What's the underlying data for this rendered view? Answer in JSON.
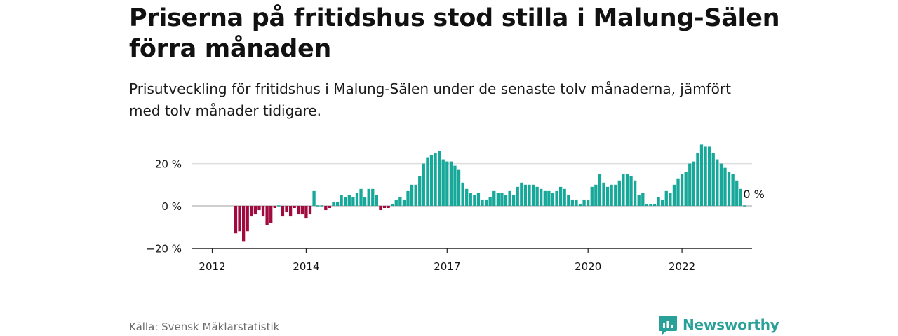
{
  "header": {
    "title": "Priserna på fritidshus stod stilla i Malung-Sälen förra månaden",
    "subtitle": "Prisutveckling för fritidshus i Malung-Sälen under de senaste tolv månaderna, jämfört med tolv månader tidigare."
  },
  "footer": {
    "source": "Källa: Svensk Mäklarstatistik",
    "brand": "Newsworthy"
  },
  "colors": {
    "positive": "#17a89a",
    "negative": "#a10a3f",
    "brand": "#2aa198"
  },
  "chart_data": {
    "type": "bar",
    "y_unit": "%",
    "ylim": [
      -20,
      30
    ],
    "y_ticks": [
      20,
      0,
      -20
    ],
    "y_tick_labels": [
      "20 %",
      "0 %",
      "−20 %"
    ],
    "x_ticks": [
      {
        "label": "2012",
        "month_index": 0
      },
      {
        "label": "2014",
        "month_index": 24
      },
      {
        "label": "2017",
        "month_index": 60
      },
      {
        "label": "2020",
        "month_index": 96
      },
      {
        "label": "2022",
        "month_index": 120
      }
    ],
    "start_month": "2012-01",
    "end_label": "0 %",
    "grid": true,
    "values": [
      null,
      null,
      null,
      null,
      null,
      null,
      -13,
      -12,
      -17,
      -12,
      -5,
      -4,
      -2,
      -5,
      -9,
      -8,
      -1,
      0,
      -5,
      -3,
      -5,
      -1,
      -4,
      -4,
      -6,
      -4,
      7,
      0,
      0,
      -2,
      -1,
      2,
      2,
      5,
      4,
      5,
      4,
      6,
      8,
      4,
      8,
      8,
      5,
      -2,
      -1,
      -1,
      1,
      3,
      4,
      3,
      7,
      10,
      10,
      14,
      20,
      23,
      24,
      25,
      26,
      22,
      21,
      21,
      19,
      17,
      11,
      8,
      6,
      5,
      6,
      3,
      3,
      4,
      7,
      6,
      6,
      5,
      7,
      5,
      9,
      11,
      10,
      10,
      10,
      9,
      8,
      7,
      7,
      6,
      7,
      9,
      8,
      5,
      3,
      3,
      1,
      3,
      3,
      9,
      10,
      15,
      11,
      9,
      10,
      10,
      12,
      15,
      15,
      14,
      12,
      5,
      6,
      1,
      1,
      1,
      4,
      3,
      7,
      6,
      10,
      13,
      15,
      16,
      20,
      21,
      25,
      29,
      28,
      28,
      25,
      22,
      20,
      18,
      16,
      15,
      12,
      8,
      0
    ]
  }
}
